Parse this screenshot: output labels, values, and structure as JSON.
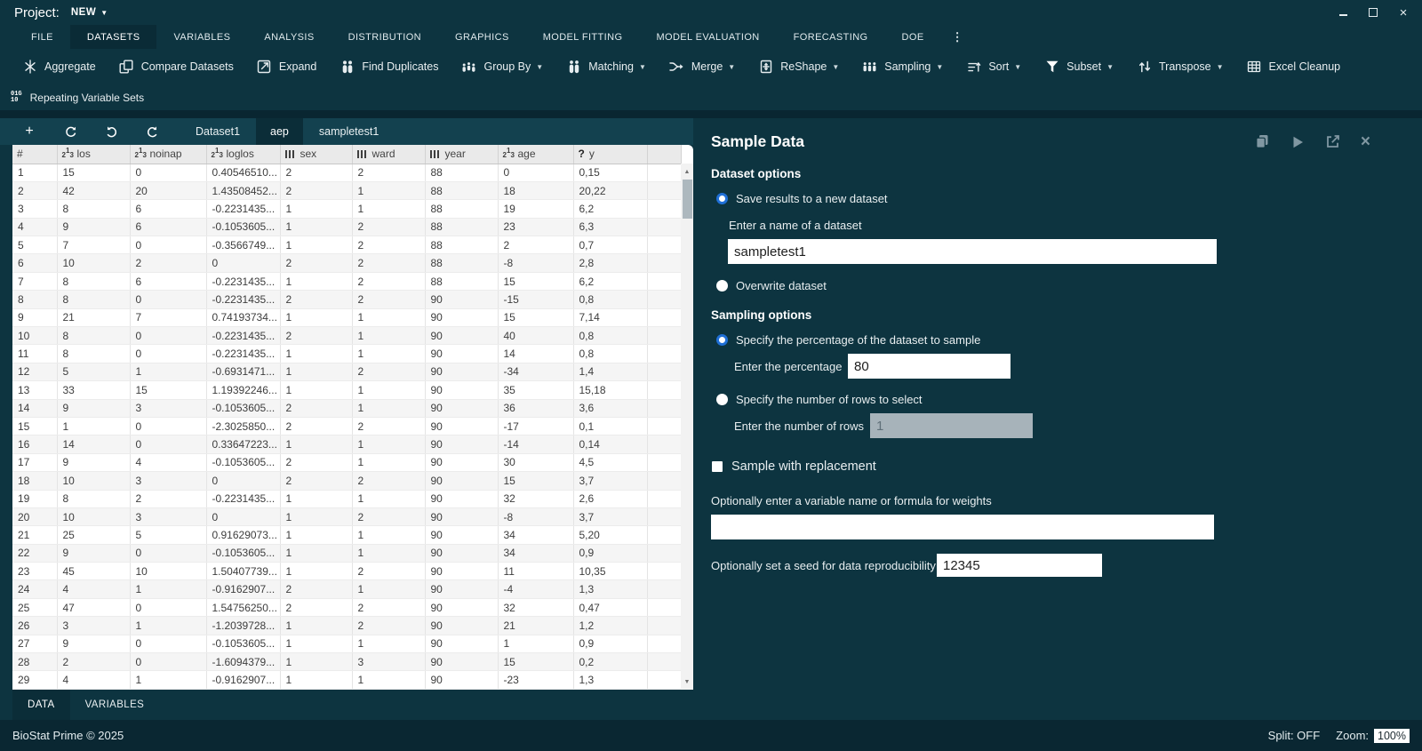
{
  "titlebar": {
    "project_label": "Project:",
    "project_value": "NEW"
  },
  "menubar": {
    "items": [
      "FILE",
      "DATASETS",
      "VARIABLES",
      "ANALYSIS",
      "DISTRIBUTION",
      "GRAPHICS",
      "MODEL FITTING",
      "MODEL EVALUATION",
      "FORECASTING",
      "DOE"
    ],
    "active": "DATASETS"
  },
  "toolbar": {
    "items": [
      {
        "name": "aggregate",
        "label": "Aggregate",
        "icon": "aggregate-icon",
        "dropdown": false
      },
      {
        "name": "compare-datasets",
        "label": "Compare Datasets",
        "icon": "compare-datasets-icon",
        "dropdown": false
      },
      {
        "name": "expand",
        "label": "Expand",
        "icon": "expand-icon",
        "dropdown": false
      },
      {
        "name": "find-duplicates",
        "label": "Find Duplicates",
        "icon": "find-duplicates-icon",
        "dropdown": false
      },
      {
        "name": "group-by",
        "label": "Group By",
        "icon": "group-by-icon",
        "dropdown": true
      },
      {
        "name": "matching",
        "label": "Matching",
        "icon": "matching-icon",
        "dropdown": true
      },
      {
        "name": "merge",
        "label": "Merge",
        "icon": "merge-icon",
        "dropdown": true
      },
      {
        "name": "reshape",
        "label": "ReShape",
        "icon": "reshape-icon",
        "dropdown": true
      },
      {
        "name": "sampling",
        "label": "Sampling",
        "icon": "sampling-icon",
        "dropdown": true
      },
      {
        "name": "sort",
        "label": "Sort",
        "icon": "sort-icon",
        "dropdown": true
      },
      {
        "name": "subset",
        "label": "Subset",
        "icon": "subset-icon",
        "dropdown": true
      },
      {
        "name": "transpose",
        "label": "Transpose",
        "icon": "transpose-icon",
        "dropdown": true
      },
      {
        "name": "excel-cleanup",
        "label": "Excel Cleanup",
        "icon": "excel-cleanup-icon",
        "dropdown": false
      }
    ]
  },
  "toolbar2": {
    "label": "Repeating Variable Sets",
    "icon_lines": [
      "01G",
      "10"
    ]
  },
  "dataset_tabs": {
    "tabs": [
      "Dataset1",
      "aep",
      "sampletest1"
    ],
    "active": "aep"
  },
  "table": {
    "columns": [
      {
        "label": "#",
        "type": "index"
      },
      {
        "label": "los",
        "type": "num"
      },
      {
        "label": "noinap",
        "type": "num"
      },
      {
        "label": "loglos",
        "type": "num"
      },
      {
        "label": "sex",
        "type": "cat"
      },
      {
        "label": "ward",
        "type": "cat"
      },
      {
        "label": "year",
        "type": "cat"
      },
      {
        "label": "age",
        "type": "num"
      },
      {
        "label": "y",
        "type": "unknown"
      },
      {
        "label": "",
        "type": "spare"
      }
    ],
    "rows": [
      [
        "1",
        "15",
        "0",
        "0.40546510...",
        "2",
        "2",
        "88",
        "0",
        "0,15"
      ],
      [
        "2",
        "42",
        "20",
        "1.43508452...",
        "2",
        "1",
        "88",
        "18",
        "20,22"
      ],
      [
        "3",
        "8",
        "6",
        "-0.2231435...",
        "1",
        "1",
        "88",
        "19",
        "6,2"
      ],
      [
        "4",
        "9",
        "6",
        "-0.1053605...",
        "1",
        "2",
        "88",
        "23",
        "6,3"
      ],
      [
        "5",
        "7",
        "0",
        "-0.3566749...",
        "1",
        "2",
        "88",
        "2",
        "0,7"
      ],
      [
        "6",
        "10",
        "2",
        "0",
        "2",
        "2",
        "88",
        "-8",
        "2,8"
      ],
      [
        "7",
        "8",
        "6",
        "-0.2231435...",
        "1",
        "2",
        "88",
        "15",
        "6,2"
      ],
      [
        "8",
        "8",
        "0",
        "-0.2231435...",
        "2",
        "2",
        "90",
        "-15",
        "0,8"
      ],
      [
        "9",
        "21",
        "7",
        "0.74193734...",
        "1",
        "1",
        "90",
        "15",
        "7,14"
      ],
      [
        "10",
        "8",
        "0",
        "-0.2231435...",
        "2",
        "1",
        "90",
        "40",
        "0,8"
      ],
      [
        "11",
        "8",
        "0",
        "-0.2231435...",
        "1",
        "1",
        "90",
        "14",
        "0,8"
      ],
      [
        "12",
        "5",
        "1",
        "-0.6931471...",
        "1",
        "2",
        "90",
        "-34",
        "1,4"
      ],
      [
        "13",
        "33",
        "15",
        "1.19392246...",
        "1",
        "1",
        "90",
        "35",
        "15,18"
      ],
      [
        "14",
        "9",
        "3",
        "-0.1053605...",
        "2",
        "1",
        "90",
        "36",
        "3,6"
      ],
      [
        "15",
        "1",
        "0",
        "-2.3025850...",
        "2",
        "2",
        "90",
        "-17",
        "0,1"
      ],
      [
        "16",
        "14",
        "0",
        "0.33647223...",
        "1",
        "1",
        "90",
        "-14",
        "0,14"
      ],
      [
        "17",
        "9",
        "4",
        "-0.1053605...",
        "2",
        "1",
        "90",
        "30",
        "4,5"
      ],
      [
        "18",
        "10",
        "3",
        "0",
        "2",
        "2",
        "90",
        "15",
        "3,7"
      ],
      [
        "19",
        "8",
        "2",
        "-0.2231435...",
        "1",
        "1",
        "90",
        "32",
        "2,6"
      ],
      [
        "20",
        "10",
        "3",
        "0",
        "1",
        "2",
        "90",
        "-8",
        "3,7"
      ],
      [
        "21",
        "25",
        "5",
        "0.91629073...",
        "1",
        "1",
        "90",
        "34",
        "5,20"
      ],
      [
        "22",
        "9",
        "0",
        "-0.1053605...",
        "1",
        "1",
        "90",
        "34",
        "0,9"
      ],
      [
        "23",
        "45",
        "10",
        "1.50407739...",
        "1",
        "2",
        "90",
        "11",
        "10,35"
      ],
      [
        "24",
        "4",
        "1",
        "-0.9162907...",
        "2",
        "1",
        "90",
        "-4",
        "1,3"
      ],
      [
        "25",
        "47",
        "0",
        "1.54756250...",
        "2",
        "2",
        "90",
        "32",
        "0,47"
      ],
      [
        "26",
        "3",
        "1",
        "-1.2039728...",
        "1",
        "2",
        "90",
        "21",
        "1,2"
      ],
      [
        "27",
        "9",
        "0",
        "-0.1053605...",
        "1",
        "1",
        "90",
        "1",
        "0,9"
      ],
      [
        "28",
        "2",
        "0",
        "-1.6094379...",
        "1",
        "3",
        "90",
        "15",
        "0,2"
      ],
      [
        "29",
        "4",
        "1",
        "-0.9162907...",
        "1",
        "1",
        "90",
        "-23",
        "1,3"
      ]
    ]
  },
  "bottom_tabs": {
    "items": [
      "DATA",
      "VARIABLES"
    ],
    "active": "DATA"
  },
  "panel": {
    "title": "Sample Data",
    "dataset_options_heading": "Dataset options",
    "radio_new_dataset": "Save results to a new dataset",
    "name_label": "Enter a name of a dataset",
    "name_value": "sampletest1",
    "radio_overwrite": "Overwrite dataset",
    "sampling_heading": "Sampling options",
    "radio_percentage": "Specify the percentage of the dataset to sample",
    "percentage_label": "Enter the percentage",
    "percentage_value": "80",
    "radio_rows": "Specify the number of rows to select",
    "rows_label": "Enter the number of rows",
    "rows_value": "1",
    "checkbox_replacement": "Sample with replacement",
    "weights_label": "Optionally enter a variable name or formula for weights",
    "weights_value": "",
    "seed_label": "Optionally set a seed for data reproducibility",
    "seed_value": "12345"
  },
  "statusbar": {
    "brand": "BioStat Prime © 2025",
    "split": "Split: OFF",
    "zoom_label": "Zoom:",
    "zoom_value": "100%"
  },
  "colors": {
    "bg_main": "#0d3440",
    "bg_tab_row": "#13414f",
    "bg_active_dark": "#0b2d38",
    "accent_radio_blue": "#1f6fd6",
    "panel_icon_gray": "#8097a2",
    "table_header_bg": "#eaeaea",
    "statusbar_bg": "#0a2732"
  }
}
